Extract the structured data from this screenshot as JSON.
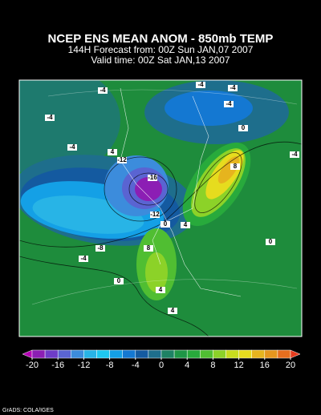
{
  "header": {
    "title": "NCEP ENS MEAN ANOM - 850mb TEMP",
    "forecast": "144H Forecast from: 00Z Sun JAN,07 2007",
    "valid": "Valid time: 00Z Sat JAN,13 2007"
  },
  "map": {
    "contour_labels": [
      "-4",
      "-4",
      "-4",
      "-4",
      "0",
      "-4",
      "4",
      "-12",
      "-16",
      "-12",
      "-8",
      "-4",
      "0",
      "4",
      "8",
      "4",
      "-4",
      "0",
      "8",
      "4",
      "0",
      "-4"
    ]
  },
  "colorbar": {
    "ticks": [
      -20,
      -16,
      -12,
      -8,
      -4,
      0,
      4,
      8,
      12,
      16,
      20
    ],
    "colors": [
      "#b400b4",
      "#8c1eb4",
      "#6e3cc8",
      "#5a64d2",
      "#3c8cdc",
      "#28b4e6",
      "#1ec8f0",
      "#14a0e6",
      "#1478d2",
      "#145aa0",
      "#1e6e8c",
      "#1e8264",
      "#1e9646",
      "#28aa3c",
      "#50be32",
      "#8cd228",
      "#c8dc1e",
      "#e6dc1e",
      "#e6b41e",
      "#e6961e",
      "#e66e1e",
      "#e63c1e"
    ]
  },
  "footer": "GrADS: COLA/IGES"
}
